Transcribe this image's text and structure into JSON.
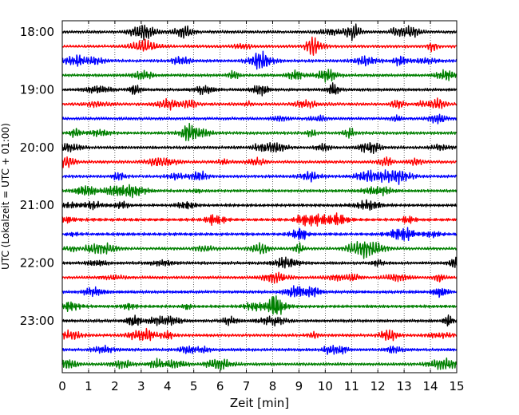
{
  "chart_data": {
    "type": "line",
    "title": "",
    "xlabel": "Zeit  [min]",
    "ylabel": "UTC (Lokalzeit = UTC + 01:00)",
    "xlim": [
      0,
      15
    ],
    "x_ticks": [
      "0",
      "1",
      "2",
      "3",
      "4",
      "5",
      "6",
      "7",
      "8",
      "9",
      "10",
      "11",
      "12",
      "13",
      "14",
      "15"
    ],
    "y_ticks": [
      "18:00",
      "19:00",
      "20:00",
      "21:00",
      "22:00",
      "23:00"
    ],
    "vertical_grid": "dotted",
    "row_interval_min": 15,
    "rows_start": "18:00",
    "row_count": 24,
    "trace_colors": [
      "#000000",
      "#ff0000",
      "#0000ff",
      "#008000"
    ]
  }
}
